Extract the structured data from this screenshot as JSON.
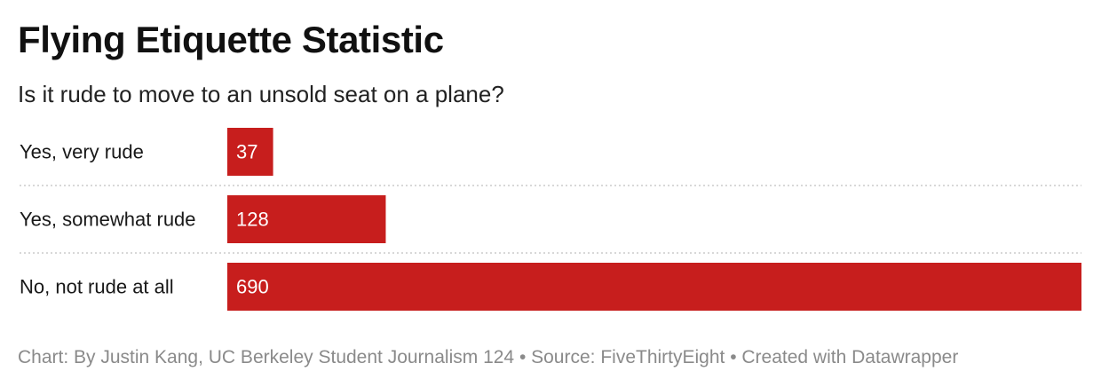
{
  "title": "Flying Etiquette Statistic",
  "subtitle": "Is it rude to move to an unsold seat on a plane?",
  "footer": "Chart: By Justin Kang, UC Berkeley Student Journalism 124 • Source: FiveThirtyEight • Created with Datawrapper",
  "colors": {
    "bar": "#c71e1d",
    "bar_label": "#ffffff",
    "separator": "#cccccc",
    "category_text": "#181818"
  },
  "chart_data": {
    "type": "bar",
    "orientation": "horizontal",
    "categories": [
      "Yes, very rude",
      "Yes, somewhat rude",
      "No, not rude at all"
    ],
    "values": [
      37,
      128,
      690
    ],
    "title": "Flying Etiquette Statistic",
    "subtitle": "Is it rude to move to an unsold seat on a plane?",
    "xlim": [
      0,
      690
    ],
    "grid": false,
    "value_labels": "inside-left",
    "row_separators": "dotted"
  }
}
